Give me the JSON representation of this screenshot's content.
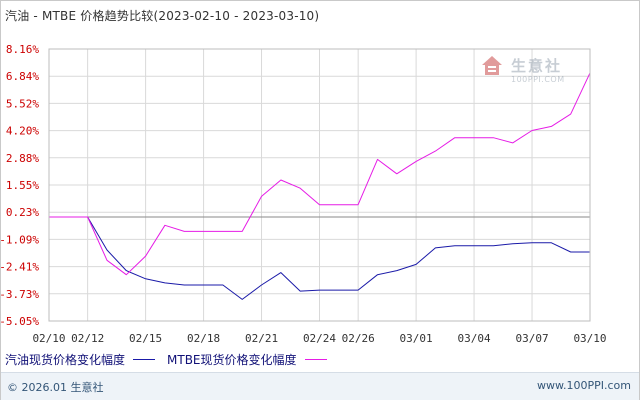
{
  "header": {
    "title": "汽油 - MTBE 价格趋势比较(2023-02-10 - 2023-03-10)"
  },
  "watermark": {
    "name": "生意社",
    "url": "100PPI.COM"
  },
  "legend": {
    "series_1": "汽油现货价格变化幅度",
    "series_2": "MTBE现货价格变化幅度"
  },
  "footer": {
    "copyright_symbol": "©",
    "copyright_text": "2026.01 生意社",
    "site": "www.100PPI.com"
  },
  "colors": {
    "series_1": "#1a1aa8",
    "series_2": "#e61ce6",
    "axis_labels": "#cc0000",
    "grid": "#d9d9d9"
  },
  "chart_data": {
    "type": "line",
    "title": "汽油 - MTBE 价格趋势比较(2023-02-10 - 2023-03-10)",
    "x": [
      "02/10",
      "02/11",
      "02/12",
      "02/13",
      "02/14",
      "02/15",
      "02/16",
      "02/17",
      "02/18",
      "02/19",
      "02/20",
      "02/21",
      "02/22",
      "02/23",
      "02/24",
      "02/25",
      "02/26",
      "02/27",
      "02/28",
      "03/01",
      "03/02",
      "03/03",
      "03/04",
      "03/05",
      "03/06",
      "03/07",
      "03/08",
      "03/09",
      "03/10"
    ],
    "xticks": [
      "02/10",
      "02/12",
      "02/15",
      "02/18",
      "02/21",
      "02/24",
      "02/26",
      "03/01",
      "03/04",
      "03/07",
      "03/10"
    ],
    "yticks": [
      "8.16%",
      "6.84%",
      "5.52%",
      "4.20%",
      "2.88%",
      "1.55%",
      "0.23%",
      "-1.09%",
      "-2.41%",
      "-3.73%",
      "-5.05%"
    ],
    "ylim": [
      -5.05,
      8.16
    ],
    "series": [
      {
        "name": "汽油现货价格变化幅度",
        "values": [
          0,
          0,
          0,
          -1.6,
          -2.6,
          -3.0,
          -3.2,
          -3.3,
          -3.3,
          -3.3,
          -4.0,
          -3.3,
          -2.7,
          -3.6,
          -3.55,
          -3.55,
          -3.55,
          -2.8,
          -2.6,
          -2.3,
          -1.5,
          -1.4,
          -1.4,
          -1.4,
          -1.3,
          -1.25,
          -1.25,
          -1.7,
          -1.7
        ]
      },
      {
        "name": "MTBE现货价格变化幅度",
        "values": [
          0,
          0,
          0,
          -2.1,
          -2.8,
          -1.9,
          -0.4,
          -0.7,
          -0.7,
          -0.7,
          -0.7,
          1.0,
          1.8,
          1.4,
          0.6,
          0.6,
          0.6,
          2.8,
          2.1,
          2.7,
          3.2,
          3.85,
          3.85,
          3.85,
          3.6,
          4.2,
          4.4,
          5.0,
          7.0
        ]
      }
    ],
    "grid": true,
    "legend_position": "bottom"
  }
}
